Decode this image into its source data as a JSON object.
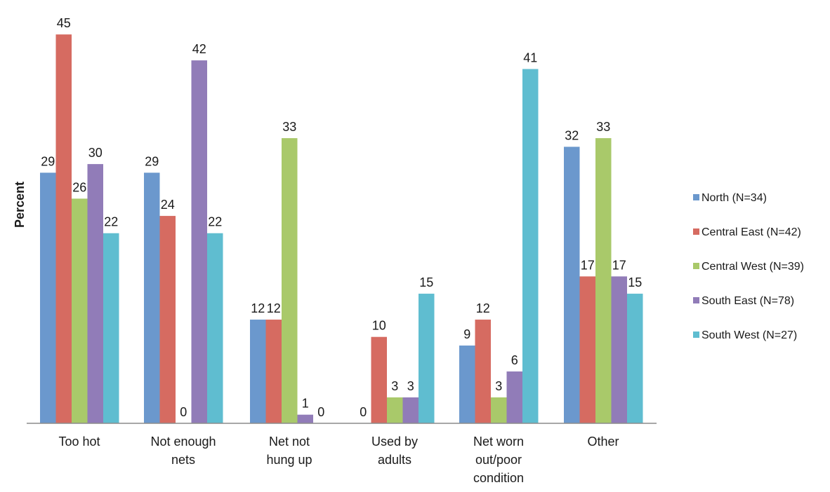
{
  "chart_data": {
    "type": "bar",
    "title": "",
    "xlabel": "",
    "ylabel": "Percent",
    "ylim": [
      0,
      45
    ],
    "grid": false,
    "legend_position": "right",
    "categories": [
      "Too hot",
      "Not enough nets",
      "Net not hung up",
      "Used by adults",
      "Net worn out/poor condition",
      "Other"
    ],
    "category_label_lines": [
      [
        "Too hot"
      ],
      [
        "Not enough",
        "nets"
      ],
      [
        "Net not",
        "hung up"
      ],
      [
        "Used by",
        "adults"
      ],
      [
        "Net worn",
        "out/poor",
        "condition"
      ],
      [
        "Other"
      ]
    ],
    "series": [
      {
        "name": "North (N=34)",
        "color": "#6b98cd",
        "values": [
          29,
          29,
          12,
          0,
          9,
          32
        ]
      },
      {
        "name": "Central East (N=42)",
        "color": "#d66b61",
        "values": [
          45,
          24,
          12,
          10,
          12,
          17
        ]
      },
      {
        "name": "Central West (N=39)",
        "color": "#a9c96a",
        "values": [
          26,
          0,
          33,
          3,
          3,
          33
        ]
      },
      {
        "name": "South East (N=78)",
        "color": "#917cb8",
        "values": [
          30,
          42,
          1,
          3,
          6,
          17
        ]
      },
      {
        "name": "South West (N=27)",
        "color": "#5fbdd0",
        "values": [
          22,
          22,
          0,
          15,
          41,
          15
        ]
      }
    ]
  }
}
